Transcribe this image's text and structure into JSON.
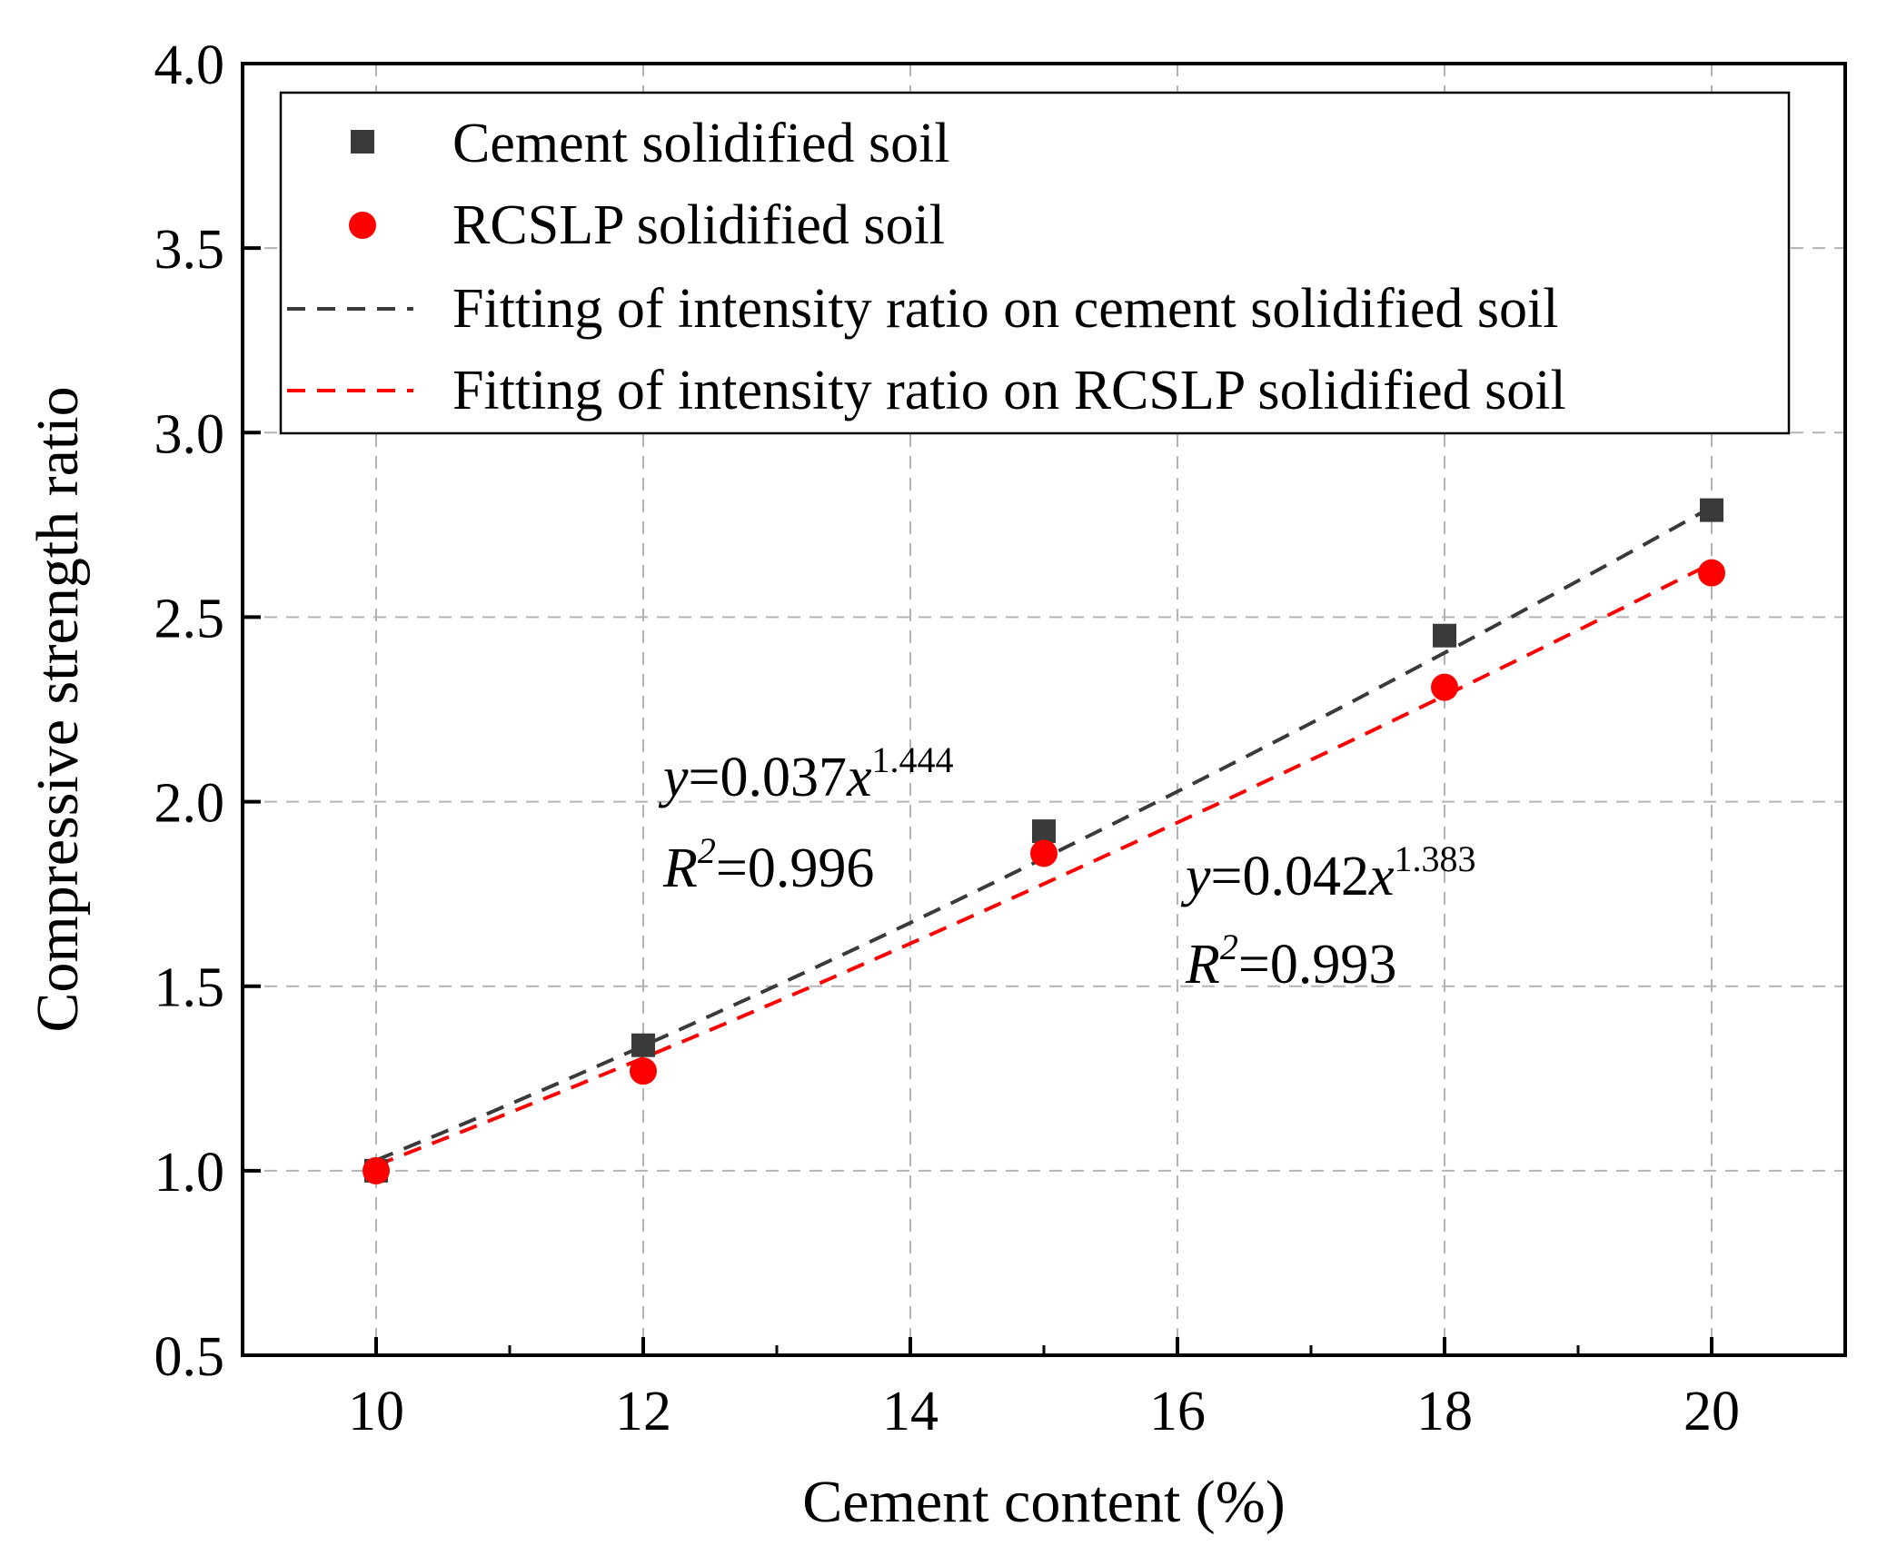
{
  "chart_data": {
    "type": "scatter",
    "xlabel": "Cement content (%)",
    "ylabel": "Compressive strength ratio",
    "xlim": [
      9,
      21
    ],
    "ylim": [
      0.5,
      4.0
    ],
    "xticks": [
      10,
      12,
      14,
      16,
      18,
      20
    ],
    "xtick_labels": [
      "10",
      "12",
      "14",
      "16",
      "18",
      "20"
    ],
    "yticks": [
      0.5,
      1.0,
      1.5,
      2.0,
      2.5,
      3.0,
      3.5,
      4.0
    ],
    "ytick_labels": [
      "0.5",
      "1.0",
      "1.5",
      "2.0",
      "2.5",
      "3.0",
      "3.5",
      "4.0"
    ],
    "grid": true,
    "legend_position": "top",
    "series": [
      {
        "name": "Cement solidified soil",
        "marker": "square",
        "color": "#3a3a3a",
        "x": [
          10,
          12,
          15,
          18,
          20
        ],
        "y": [
          1.0,
          1.34,
          1.92,
          2.45,
          2.79
        ]
      },
      {
        "name": "RCSLP solidified soil",
        "marker": "circle",
        "color": "#ff0000",
        "x": [
          10,
          12,
          15,
          18,
          20
        ],
        "y": [
          1.0,
          1.27,
          1.86,
          2.31,
          2.62
        ]
      }
    ],
    "fits": [
      {
        "name": "Fitting of intensity ratio on cement solidified soil",
        "color": "#3a3a3a",
        "dash": true,
        "a": 0.037,
        "b": 1.444,
        "x_range": [
          10,
          20
        ]
      },
      {
        "name": "Fitting of intensity ratio on RCSLP solidified soil",
        "color": "#ff0000",
        "dash": true,
        "a": 0.042,
        "b": 1.383,
        "x_range": [
          10,
          20
        ]
      }
    ],
    "annotations": [
      {
        "name": "cement-fit-equation",
        "y_var": "y",
        "eq": "=0.037",
        "x_var": "x",
        "exponent": "1.444",
        "r_var": "R",
        "r_exp": "2",
        "r_value": "=0.996"
      },
      {
        "name": "rcslp-fit-equation",
        "y_var": "y",
        "eq": "=0.042",
        "x_var": "x",
        "exponent": "1.383",
        "r_var": "R",
        "r_exp": "2",
        "r_value": "=0.993"
      }
    ]
  }
}
